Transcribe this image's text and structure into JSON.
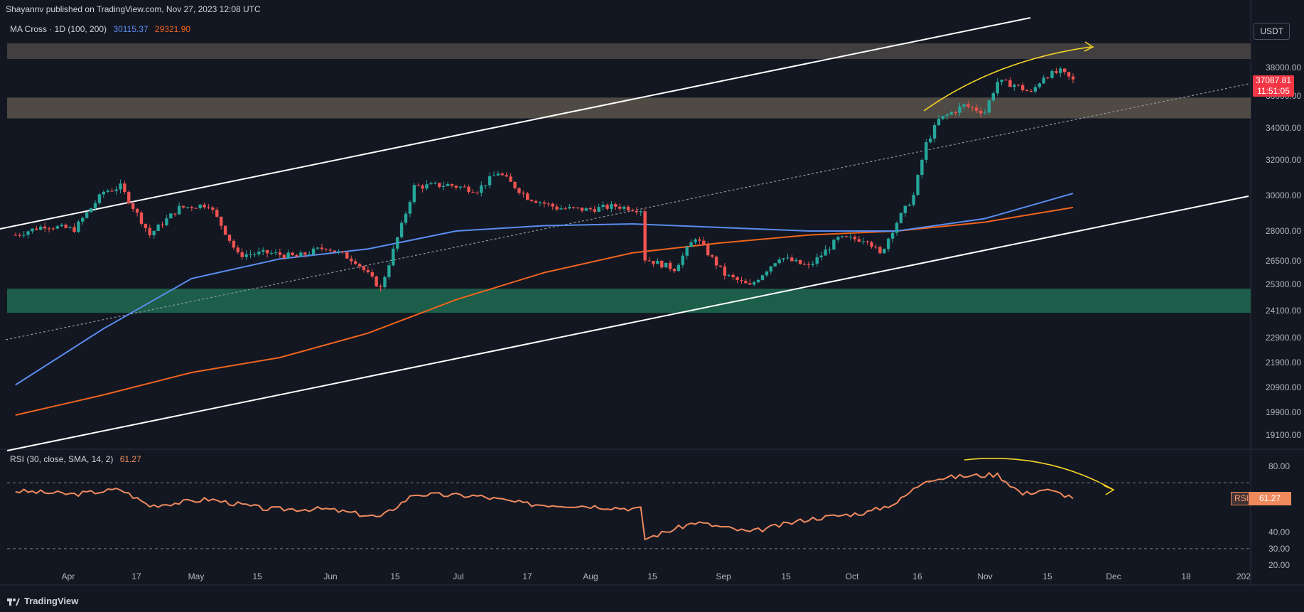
{
  "header": {
    "published": "Shayannv published on TradingView.com, Nov 27, 2023 12:08 UTC"
  },
  "legend": {
    "label": "MA Cross · 1D (100, 200)",
    "ma100_value": "30115.37",
    "ma200_value": "29321.90",
    "ma100_color": "#5b8def",
    "ma200_color": "#f0641e"
  },
  "rsi_legend": {
    "label": "RSI (30, close, SMA, 14, 2)",
    "value": "61.27",
    "color": "#f08a5d"
  },
  "axis": {
    "unit": "USDT"
  },
  "price_badge": {
    "price": "37087.81",
    "countdown": "11:51:05"
  },
  "rsi_badge": {
    "name": "RSI",
    "value": "61.27"
  },
  "footer": {
    "brand": "TradingView"
  },
  "colors": {
    "up": "#26a69a",
    "down": "#ef5350",
    "background": "#131722"
  },
  "chart_data": [
    {
      "type": "candlestick",
      "title": "",
      "price_ticks": [
        38000,
        36000,
        34000,
        32000,
        30000,
        28000,
        26500,
        25300,
        24100,
        22900,
        21900,
        20900,
        19900,
        19100
      ],
      "price_tick_labels": [
        "38000.00",
        "36000.00",
        "34000.00",
        "32000.00",
        "30000.00",
        "28000.00",
        "26500.00",
        "25300.00",
        "24100.00",
        "22900.00",
        "21900.00",
        "20900.00",
        "19900.00",
        "19100.00"
      ],
      "x_ticks": [
        "Apr",
        "17",
        "May",
        "15",
        "Jun",
        "15",
        "Jul",
        "17",
        "Aug",
        "15",
        "Sep",
        "15",
        "Oct",
        "16",
        "Nov",
        "15",
        "Dec",
        "18",
        "202"
      ],
      "close_series": [
        [
          "2023-03-20",
          27800
        ],
        [
          "2023-03-27",
          28300
        ],
        [
          "2023-04-03",
          28100
        ],
        [
          "2023-04-10",
          30200
        ],
        [
          "2023-04-14",
          30500
        ],
        [
          "2023-04-21",
          27800
        ],
        [
          "2023-04-28",
          29300
        ],
        [
          "2023-05-05",
          29500
        ],
        [
          "2023-05-12",
          26800
        ],
        [
          "2023-05-19",
          26900
        ],
        [
          "2023-05-26",
          26700
        ],
        [
          "2023-06-02",
          27200
        ],
        [
          "2023-06-09",
          26500
        ],
        [
          "2023-06-15",
          25100
        ],
        [
          "2023-06-20",
          28300
        ],
        [
          "2023-06-23",
          30500
        ],
        [
          "2023-07-01",
          30600
        ],
        [
          "2023-07-08",
          30300
        ],
        [
          "2023-07-13",
          31300
        ],
        [
          "2023-07-20",
          29900
        ],
        [
          "2023-07-27",
          29300
        ],
        [
          "2023-08-03",
          29200
        ],
        [
          "2023-08-10",
          29400
        ],
        [
          "2023-08-16",
          29200
        ],
        [
          "2023-08-17",
          26600
        ],
        [
          "2023-08-24",
          26100
        ],
        [
          "2023-08-29",
          27700
        ],
        [
          "2023-09-05",
          25800
        ],
        [
          "2023-09-11",
          25200
        ],
        [
          "2023-09-18",
          26700
        ],
        [
          "2023-09-25",
          26200
        ],
        [
          "2023-10-02",
          27600
        ],
        [
          "2023-10-09",
          27600
        ],
        [
          "2023-10-12",
          26800
        ],
        [
          "2023-10-16",
          28500
        ],
        [
          "2023-10-20",
          30000
        ],
        [
          "2023-10-23",
          33000
        ],
        [
          "2023-10-26",
          34500
        ],
        [
          "2023-11-01",
          35400
        ],
        [
          "2023-11-06",
          35000
        ],
        [
          "2023-11-09",
          37000
        ],
        [
          "2023-11-13",
          36800
        ],
        [
          "2023-11-17",
          36200
        ],
        [
          "2023-11-20",
          37400
        ],
        [
          "2023-11-24",
          37700
        ],
        [
          "2023-11-27",
          37088
        ]
      ],
      "ma100": [
        [
          "2023-03-20",
          21000
        ],
        [
          "2023-04-10",
          23300
        ],
        [
          "2023-05-01",
          25600
        ],
        [
          "2023-05-22",
          26600
        ],
        [
          "2023-06-12",
          27100
        ],
        [
          "2023-07-03",
          28000
        ],
        [
          "2023-07-24",
          28300
        ],
        [
          "2023-08-14",
          28400
        ],
        [
          "2023-09-04",
          28200
        ],
        [
          "2023-09-25",
          28000
        ],
        [
          "2023-10-16",
          28000
        ],
        [
          "2023-11-06",
          28700
        ],
        [
          "2023-11-27",
          30115
        ]
      ],
      "ma200": [
        [
          "2023-03-20",
          19800
        ],
        [
          "2023-04-10",
          20600
        ],
        [
          "2023-05-01",
          21500
        ],
        [
          "2023-05-22",
          22100
        ],
        [
          "2023-06-12",
          23100
        ],
        [
          "2023-07-03",
          24600
        ],
        [
          "2023-07-24",
          25900
        ],
        [
          "2023-08-14",
          26900
        ],
        [
          "2023-09-04",
          27400
        ],
        [
          "2023-09-25",
          27800
        ],
        [
          "2023-10-16",
          28000
        ],
        [
          "2023-11-06",
          28500
        ],
        [
          "2023-11-27",
          29322
        ]
      ],
      "zones": [
        {
          "from": 38600,
          "to": 39700,
          "color": "#4a4645"
        },
        {
          "from": 34600,
          "to": 35900,
          "color": "#5a534a"
        },
        {
          "from": 24000,
          "to": 25100,
          "color": "#1e6b50"
        }
      ]
    },
    {
      "type": "line",
      "title": "",
      "ylim": [
        20,
        80
      ],
      "y_ticks": [
        80,
        40,
        30,
        20
      ],
      "y_tick_labels": [
        "80.00",
        "40.00",
        "30.00",
        "20.00"
      ],
      "bands": [
        70,
        30
      ],
      "rsi_series": [
        [
          "2023-03-20",
          65
        ],
        [
          "2023-04-03",
          63
        ],
        [
          "2023-04-14",
          66
        ],
        [
          "2023-04-21",
          56
        ],
        [
          "2023-05-05",
          60
        ],
        [
          "2023-05-19",
          54
        ],
        [
          "2023-06-02",
          54
        ],
        [
          "2023-06-15",
          49
        ],
        [
          "2023-06-23",
          63
        ],
        [
          "2023-07-08",
          62
        ],
        [
          "2023-07-20",
          57
        ],
        [
          "2023-08-03",
          56
        ],
        [
          "2023-08-16",
          54
        ],
        [
          "2023-08-17",
          36
        ],
        [
          "2023-08-29",
          46
        ],
        [
          "2023-09-11",
          40
        ],
        [
          "2023-09-25",
          48
        ],
        [
          "2023-10-09",
          52
        ],
        [
          "2023-10-16",
          58
        ],
        [
          "2023-10-23",
          72
        ],
        [
          "2023-11-01",
          74
        ],
        [
          "2023-11-09",
          75
        ],
        [
          "2023-11-15",
          63
        ],
        [
          "2023-11-20",
          66
        ],
        [
          "2023-11-27",
          61.27
        ]
      ]
    }
  ]
}
